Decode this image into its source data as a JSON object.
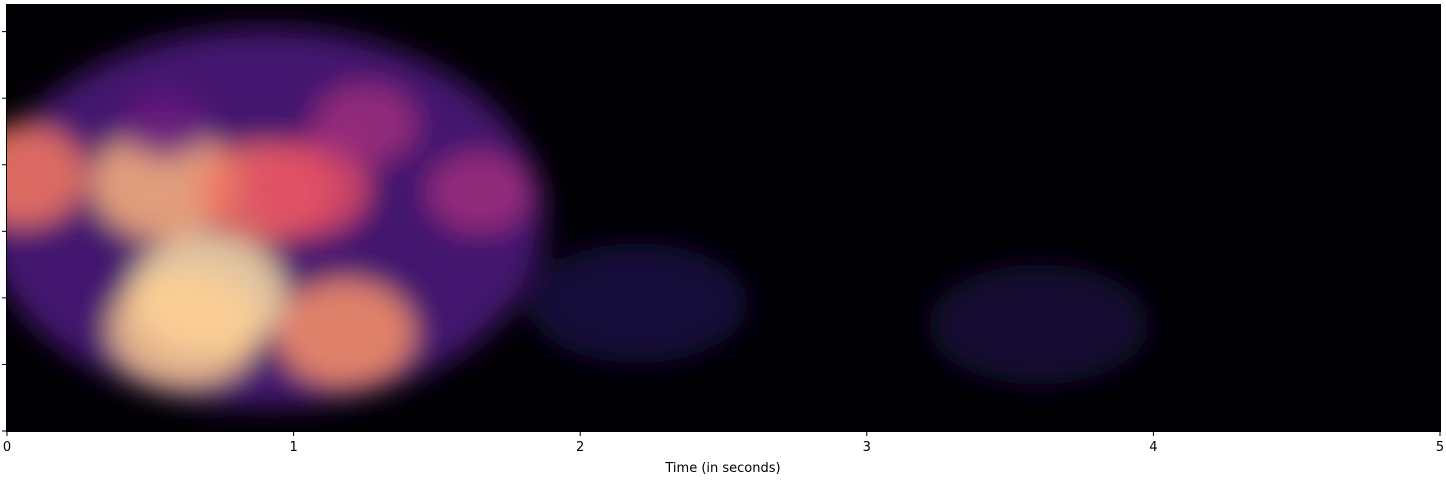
{
  "chart_data": {
    "type": "heatmap",
    "title": "",
    "xlabel": "Time (in seconds)",
    "ylabel": "",
    "xlim": [
      0,
      5
    ],
    "x_ticks": [
      "0",
      "1",
      "2",
      "3",
      "4",
      "5"
    ],
    "y_tick_count": 7,
    "colormap": "magma",
    "colormap_stops": [
      "#000004",
      "#1c1044",
      "#4f127b",
      "#812581",
      "#b5367a",
      "#e55064",
      "#fb8761",
      "#fec287",
      "#fcfdbf"
    ],
    "energy_blobs": [
      {
        "t": 0.05,
        "band": 0.6,
        "level": 0.72
      },
      {
        "t": 0.55,
        "band": 0.58,
        "level": 0.85
      },
      {
        "t": 0.7,
        "band": 0.32,
        "level": 0.95
      },
      {
        "t": 0.62,
        "band": 0.24,
        "level": 0.9
      },
      {
        "t": 0.9,
        "band": 0.56,
        "level": 0.7
      },
      {
        "t": 1.05,
        "band": 0.57,
        "level": 0.62
      },
      {
        "t": 1.18,
        "band": 0.23,
        "level": 0.78
      },
      {
        "t": 1.25,
        "band": 0.72,
        "level": 0.45
      },
      {
        "t": 1.65,
        "band": 0.56,
        "level": 0.45
      },
      {
        "t": 0.55,
        "band": 0.72,
        "level": 0.3
      },
      {
        "t": 2.2,
        "band": 0.3,
        "level": 0.12
      },
      {
        "t": 3.6,
        "band": 0.25,
        "level": 0.1
      }
    ]
  }
}
